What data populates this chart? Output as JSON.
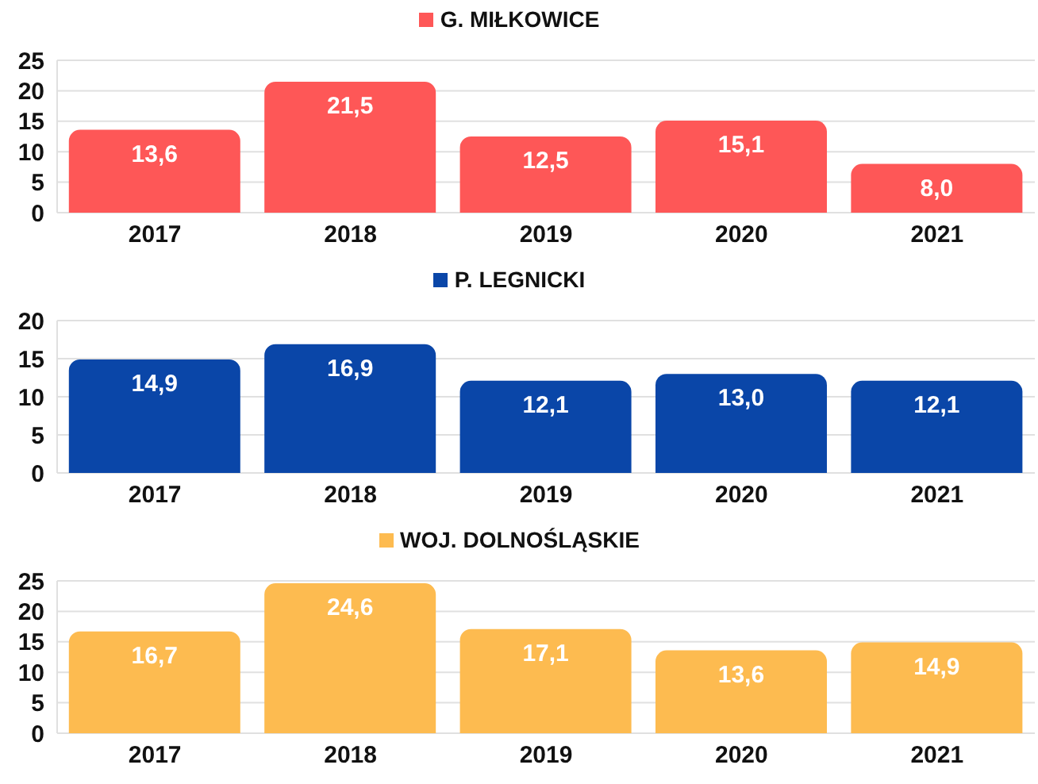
{
  "chart_data": [
    {
      "type": "bar",
      "categories": [
        "2017",
        "2018",
        "2019",
        "2020",
        "2021"
      ],
      "series": [
        {
          "name": "G. MIŁKOWICE",
          "color": "#fe5757",
          "values": [
            13.6,
            21.5,
            12.5,
            15.1,
            8.0
          ],
          "value_labels": [
            "13,6",
            "21,5",
            "12,5",
            "15,1",
            "8,0"
          ]
        }
      ],
      "ylim": [
        0,
        25
      ],
      "yticks": [
        0,
        5,
        10,
        15,
        20,
        25
      ],
      "grid": "y",
      "legend": "top"
    },
    {
      "type": "bar",
      "categories": [
        "2017",
        "2018",
        "2019",
        "2020",
        "2021"
      ],
      "series": [
        {
          "name": "P. LEGNICKI",
          "color": "#0a46a8",
          "values": [
            14.9,
            16.9,
            12.1,
            13.0,
            12.1
          ],
          "value_labels": [
            "14,9",
            "16,9",
            "12,1",
            "13,0",
            "12,1"
          ]
        }
      ],
      "ylim": [
        0,
        20
      ],
      "yticks": [
        0,
        5,
        10,
        15,
        20
      ],
      "grid": "y",
      "legend": "top"
    },
    {
      "type": "bar",
      "categories": [
        "2017",
        "2018",
        "2019",
        "2020",
        "2021"
      ],
      "series": [
        {
          "name": "WOJ. DOLNOŚLĄSKIE",
          "color": "#fdbb50",
          "values": [
            16.7,
            24.6,
            17.1,
            13.6,
            14.9
          ],
          "value_labels": [
            "16,7",
            "24,6",
            "17,1",
            "13,6",
            "14,9"
          ]
        }
      ],
      "ylim": [
        0,
        25
      ],
      "yticks": [
        0,
        5,
        10,
        15,
        20,
        25
      ],
      "grid": "y",
      "legend": "top"
    }
  ]
}
